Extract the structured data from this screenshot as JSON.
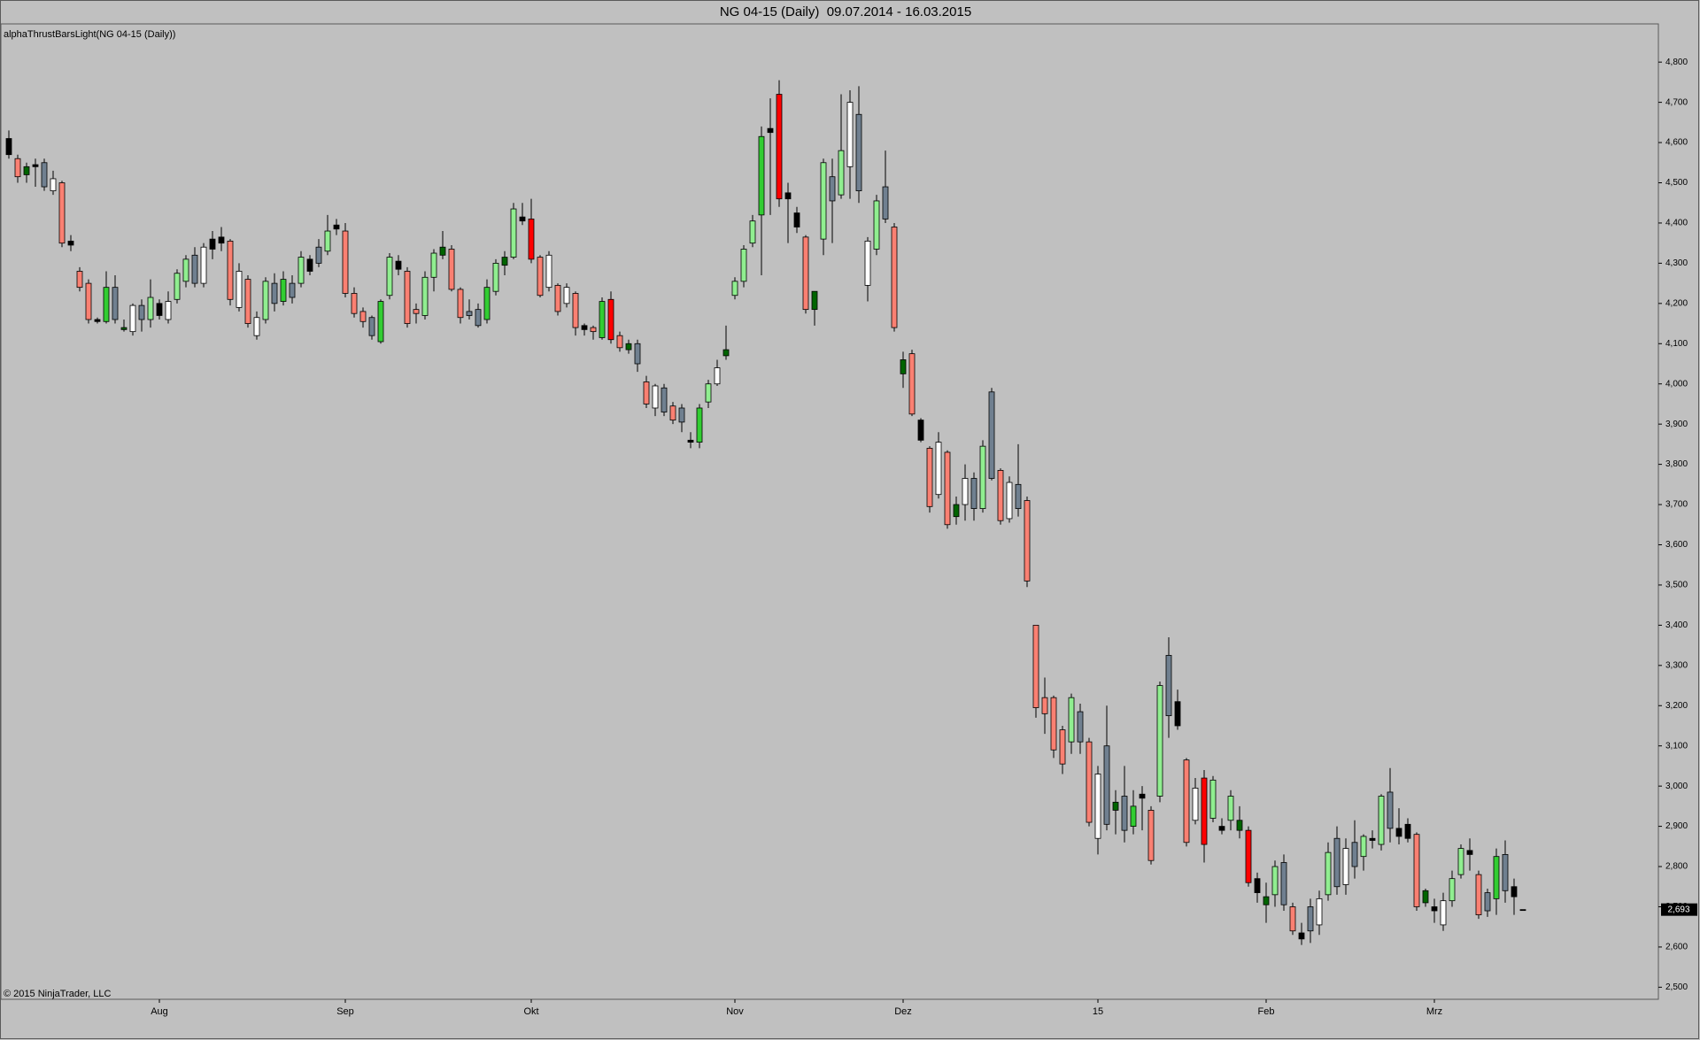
{
  "chart_data": {
    "type": "candlestick",
    "title": "NG 04-15 (Daily)  09.07.2014 - 16.03.2015",
    "indicator_label": "alphaThrustBarsLight(NG 04-15 (Daily))",
    "copyright": "© 2015 NinjaTrader, LLC",
    "categories": [
      null,
      null,
      null,
      null,
      null,
      null,
      null,
      null,
      null,
      null,
      null,
      null,
      null,
      null,
      null,
      null,
      null,
      "Aug",
      null,
      null,
      null,
      null,
      null,
      null,
      null,
      null,
      null,
      null,
      null,
      null,
      null,
      null,
      null,
      null,
      null,
      null,
      null,
      null,
      "Sep",
      null,
      null,
      null,
      null,
      null,
      null,
      null,
      null,
      null,
      null,
      null,
      null,
      null,
      null,
      null,
      null,
      null,
      null,
      null,
      null,
      "Okt",
      null,
      null,
      null,
      null,
      null,
      null,
      null,
      null,
      null,
      null,
      null,
      null,
      null,
      null,
      null,
      null,
      null,
      null,
      null,
      null,
      null,
      null,
      "Nov",
      null,
      null,
      null,
      null,
      null,
      null,
      null,
      null,
      null,
      null,
      null,
      null,
      null,
      null,
      null,
      null,
      null,
      null,
      "Dez",
      null,
      null,
      null,
      null,
      null,
      null,
      null,
      null,
      null,
      null,
      null,
      null,
      null,
      null,
      null,
      null,
      null,
      null,
      null,
      null,
      null,
      "15",
      null,
      null,
      null,
      null,
      null,
      null,
      null,
      null,
      null,
      null,
      null,
      null,
      null,
      null,
      null,
      null,
      null,
      null,
      "Feb",
      null,
      null,
      null,
      null,
      null,
      null,
      null,
      null,
      null,
      null,
      null,
      null,
      null,
      null,
      null,
      null,
      null,
      null,
      "Mrz",
      null,
      null,
      null,
      null,
      null,
      null,
      null,
      null,
      null,
      null
    ],
    "open": [
      4610,
      4560,
      4540,
      4545,
      4550,
      4480,
      4500,
      4355,
      4280,
      4250,
      4160,
      4155,
      4240,
      4140,
      4130,
      4195,
      4160,
      4200,
      4160,
      4210,
      4255,
      4320,
      4250,
      4360,
      4365,
      4355,
      4190,
      4260,
      4120,
      4160,
      4250,
      4205,
      4250,
      4250,
      4310,
      4340,
      4330,
      4395,
      4380,
      4225,
      4180,
      4165,
      4105,
      4220,
      4305,
      4280,
      4185,
      4170,
      4265,
      4340,
      4335,
      4235,
      4180,
      4185,
      4160,
      4230,
      4315,
      4315,
      4415,
      4410,
      4315,
      4240,
      4245,
      4200,
      4225,
      4145,
      4140,
      4115,
      4210,
      4120,
      4100,
      4100,
      4005,
      3940,
      3990,
      3945,
      3940,
      3860,
      3855,
      3955,
      4000,
      4085,
      4220,
      4255,
      4350,
      4420,
      4635,
      4720,
      4475,
      4425,
      4365,
      4230,
      4360,
      4515,
      4470,
      4540,
      4670,
      4245,
      4335,
      4490,
      4390,
      4060,
      4075,
      3910,
      3840,
      3725,
      3830,
      3700,
      3700,
      3765,
      3690,
      3980,
      3785,
      3665,
      3750,
      3710,
      3400,
      3220,
      3220,
      3140,
      3110,
      3185,
      3110,
      2870,
      3100,
      2960,
      2975,
      2900,
      2980,
      2940,
      2975,
      3325,
      3210,
      3065,
      2915,
      3020,
      2920,
      2900,
      2915,
      2915,
      2890,
      2770,
      2725,
      2730,
      2810,
      2700,
      2635,
      2700,
      2655,
      2730,
      2870,
      2755,
      2860,
      2825,
      2870,
      2855,
      2985,
      2895,
      2905,
      2880,
      2740,
      2700,
      2655,
      2715,
      2780,
      2840,
      2780,
      2735,
      2720,
      2830,
      2750,
      2693
    ],
    "high": [
      4630,
      4570,
      4550,
      4560,
      4560,
      4530,
      4505,
      4370,
      4290,
      4260,
      4165,
      4280,
      4270,
      4160,
      4200,
      4210,
      4260,
      4210,
      4230,
      4285,
      4320,
      4340,
      4350,
      4380,
      4390,
      4360,
      4300,
      4270,
      4180,
      4265,
      4275,
      4280,
      4270,
      4330,
      4320,
      4360,
      4420,
      4410,
      4400,
      4240,
      4190,
      4170,
      4210,
      4325,
      4320,
      4290,
      4200,
      4280,
      4335,
      4380,
      4345,
      4240,
      4210,
      4200,
      4260,
      4310,
      4330,
      4450,
      4450,
      4460,
      4320,
      4330,
      4250,
      4250,
      4230,
      4150,
      4145,
      4215,
      4230,
      4130,
      4110,
      4110,
      4020,
      4000,
      4000,
      3955,
      3950,
      3880,
      3950,
      4010,
      4060,
      4145,
      4265,
      4345,
      4420,
      4640,
      4710,
      4755,
      4500,
      4440,
      4370,
      4230,
      4560,
      4560,
      4720,
      4730,
      4740,
      4365,
      4470,
      4580,
      4400,
      4080,
      4085,
      3915,
      3845,
      3880,
      3835,
      3720,
      3800,
      3780,
      3860,
      3990,
      3790,
      3770,
      3850,
      3720,
      3400,
      3270,
      3225,
      3150,
      3230,
      3205,
      3120,
      3050,
      3200,
      2990,
      3050,
      2990,
      3000,
      2950,
      3260,
      3370,
      3240,
      3070,
      3020,
      3040,
      3025,
      2920,
      2990,
      2950,
      2900,
      2785,
      2760,
      2815,
      2830,
      2710,
      2660,
      2720,
      2740,
      2860,
      2900,
      2870,
      2915,
      2880,
      2890,
      2980,
      3045,
      2945,
      2920,
      2885,
      2745,
      2720,
      2735,
      2790,
      2855,
      2870,
      2790,
      2745,
      2845,
      2865,
      2770,
      2693
    ],
    "low": [
      4560,
      4500,
      4500,
      4490,
      4480,
      4470,
      4340,
      4330,
      4230,
      4150,
      4150,
      4150,
      4150,
      4130,
      4120,
      4130,
      4140,
      4160,
      4150,
      4200,
      4240,
      4240,
      4240,
      4310,
      4330,
      4195,
      4180,
      4140,
      4110,
      4150,
      4180,
      4195,
      4200,
      4240,
      4270,
      4290,
      4320,
      4370,
      4215,
      4165,
      4140,
      4110,
      4100,
      4210,
      4270,
      4140,
      4150,
      4160,
      4230,
      4310,
      4230,
      4150,
      4160,
      4140,
      4150,
      4220,
      4270,
      4310,
      4395,
      4300,
      4215,
      4230,
      4170,
      4190,
      4120,
      4120,
      4110,
      4110,
      4100,
      4080,
      4075,
      4030,
      3940,
      3920,
      3920,
      3900,
      3880,
      3840,
      3840,
      3940,
      3995,
      4060,
      4210,
      4240,
      4340,
      4270,
      4420,
      4440,
      4350,
      4375,
      4175,
      4145,
      4320,
      4350,
      4460,
      4460,
      4450,
      4205,
      4320,
      4400,
      4130,
      3990,
      3920,
      3855,
      3680,
      3715,
      3640,
      3650,
      3660,
      3660,
      3680,
      3760,
      3650,
      3655,
      3670,
      3495,
      3170,
      3130,
      3070,
      3030,
      3080,
      3080,
      2900,
      2830,
      2890,
      2880,
      2860,
      2880,
      2890,
      2805,
      2960,
      3120,
      3140,
      2850,
      2905,
      2810,
      2910,
      2880,
      2890,
      2870,
      2750,
      2710,
      2660,
      2700,
      2690,
      2630,
      2605,
      2610,
      2630,
      2715,
      2730,
      2730,
      2770,
      2790,
      2845,
      2840,
      2860,
      2855,
      2860,
      2690,
      2700,
      2660,
      2640,
      2700,
      2770,
      2790,
      2670,
      2675,
      2680,
      2710,
      2680,
      2693
    ],
    "close": [
      4570,
      4515,
      4520,
      4540,
      4490,
      4510,
      4350,
      4345,
      4240,
      4160,
      4155,
      4240,
      4160,
      4135,
      4195,
      4160,
      4215,
      4170,
      4205,
      4275,
      4310,
      4250,
      4340,
      4335,
      4350,
      4210,
      4280,
      4150,
      4165,
      4255,
      4200,
      4260,
      4215,
      4315,
      4280,
      4300,
      4380,
      4385,
      4225,
      4175,
      4155,
      4120,
      4205,
      4315,
      4285,
      4150,
      4175,
      4265,
      4325,
      4320,
      4235,
      4165,
      4170,
      4145,
      4240,
      4300,
      4295,
      4435,
      4405,
      4310,
      4220,
      4320,
      4180,
      4240,
      4140,
      4135,
      4130,
      4205,
      4110,
      4090,
      4085,
      4050,
      3950,
      3995,
      3930,
      3910,
      3905,
      3855,
      3940,
      4000,
      4040,
      4070,
      4255,
      4335,
      4405,
      4615,
      4625,
      4460,
      4460,
      4390,
      4185,
      4185,
      4550,
      4455,
      4580,
      4700,
      4480,
      4355,
      4455,
      4410,
      4140,
      4025,
      3925,
      3860,
      3695,
      3855,
      3650,
      3670,
      3765,
      3690,
      3845,
      3765,
      3660,
      3755,
      3690,
      3510,
      3195,
      3180,
      3090,
      3055,
      3220,
      3110,
      2910,
      3030,
      2905,
      2940,
      2890,
      2950,
      2970,
      2815,
      3250,
      3175,
      3150,
      2860,
      2995,
      2855,
      3015,
      2890,
      2975,
      2890,
      2760,
      2735,
      2705,
      2800,
      2705,
      2640,
      2620,
      2640,
      2720,
      2835,
      2750,
      2845,
      2800,
      2875,
      2865,
      2975,
      2895,
      2875,
      2870,
      2700,
      2710,
      2690,
      2715,
      2770,
      2845,
      2830,
      2680,
      2690,
      2825,
      2740,
      2725,
      2693
    ],
    "colors": [
      "#000000",
      "#FA8072",
      "#006400",
      "#000000",
      "#708090",
      "#FFFFFF",
      "#FA8072",
      "#000000",
      "#FA8072",
      "#FA8072",
      "#000000",
      "#32CD32",
      "#708090",
      "#006400",
      "#FFFFFF",
      "#708090",
      "#90EE90",
      "#000000",
      "#FFFFFF",
      "#90EE90",
      "#90EE90",
      "#708090",
      "#FFFFFF",
      "#000000",
      "#000000",
      "#FA8072",
      "#FFFFFF",
      "#FA8072",
      "#FFFFFF",
      "#90EE90",
      "#708090",
      "#32CD32",
      "#708090",
      "#90EE90",
      "#000000",
      "#708090",
      "#90EE90",
      "#000000",
      "#FA8072",
      "#FA8072",
      "#FA8072",
      "#708090",
      "#32CD32",
      "#90EE90",
      "#000000",
      "#FA8072",
      "#FA8072",
      "#90EE90",
      "#90EE90",
      "#006400",
      "#FA8072",
      "#FA8072",
      "#708090",
      "#708090",
      "#32CD32",
      "#90EE90",
      "#006400",
      "#90EE90",
      "#000000",
      "#FF0000",
      "#FA8072",
      "#FFFFFF",
      "#FA8072",
      "#FFFFFF",
      "#FA8072",
      "#000000",
      "#FA8072",
      "#32CD32",
      "#FF0000",
      "#FA8072",
      "#006400",
      "#708090",
      "#FA8072",
      "#FFFFFF",
      "#708090",
      "#FA8072",
      "#708090",
      "#000000",
      "#32CD32",
      "#90EE90",
      "#FFFFFF",
      "#006400",
      "#90EE90",
      "#90EE90",
      "#90EE90",
      "#32CD32",
      "#000000",
      "#FF0000",
      "#000000",
      "#000000",
      "#FA8072",
      "#006400",
      "#90EE90",
      "#708090",
      "#90EE90",
      "#FFFFFF",
      "#708090",
      "#FFFFFF",
      "#90EE90",
      "#708090",
      "#FA8072",
      "#006400",
      "#FA8072",
      "#000000",
      "#FA8072",
      "#FFFFFF",
      "#FA8072",
      "#006400",
      "#FFFFFF",
      "#708090",
      "#90EE90",
      "#708090",
      "#FA8072",
      "#FFFFFF",
      "#708090",
      "#FA8072",
      "#FA8072",
      "#FA8072",
      "#FA8072",
      "#FA8072",
      "#90EE90",
      "#708090",
      "#FA8072",
      "#FFFFFF",
      "#708090",
      "#006400",
      "#708090",
      "#32CD32",
      "#000000",
      "#FA8072",
      "#90EE90",
      "#708090",
      "#000000",
      "#FA8072",
      "#FFFFFF",
      "#FF0000",
      "#90EE90",
      "#000000",
      "#90EE90",
      "#006400",
      "#FF0000",
      "#000000",
      "#006400",
      "#90EE90",
      "#708090",
      "#FA8072",
      "#000000",
      "#708090",
      "#FFFFFF",
      "#90EE90",
      "#708090",
      "#FFFFFF",
      "#708090",
      "#90EE90",
      "#000000",
      "#90EE90",
      "#708090",
      "#000000",
      "#000000",
      "#FA8072",
      "#006400",
      "#000000",
      "#FFFFFF",
      "#90EE90",
      "#90EE90",
      "#000000",
      "#FA8072",
      "#708090",
      "#32CD32",
      "#708090",
      "#000000",
      "#000000"
    ],
    "ylim": [
      2470,
      4895
    ],
    "yticks": [
      {
        "value": 2500,
        "label": "2,500"
      },
      {
        "value": 2600,
        "label": "2,600"
      },
      {
        "value": 2700,
        "label": "2,700"
      },
      {
        "value": 2800,
        "label": "2,800"
      },
      {
        "value": 2900,
        "label": "2,900"
      },
      {
        "value": 3000,
        "label": "3,000"
      },
      {
        "value": 3100,
        "label": "3,100"
      },
      {
        "value": 3200,
        "label": "3,200"
      },
      {
        "value": 3300,
        "label": "3,300"
      },
      {
        "value": 3400,
        "label": "3,400"
      },
      {
        "value": 3500,
        "label": "3,500"
      },
      {
        "value": 3600,
        "label": "3,600"
      },
      {
        "value": 3700,
        "label": "3,700"
      },
      {
        "value": 3800,
        "label": "3,800"
      },
      {
        "value": 3900,
        "label": "3,900"
      },
      {
        "value": 4000,
        "label": "4,000"
      },
      {
        "value": 4100,
        "label": "4,100"
      },
      {
        "value": 4200,
        "label": "4,200"
      },
      {
        "value": 4300,
        "label": "4,300"
      },
      {
        "value": 4400,
        "label": "4,400"
      },
      {
        "value": 4500,
        "label": "4,500"
      },
      {
        "value": 4600,
        "label": "4,600"
      },
      {
        "value": 4700,
        "label": "4,700"
      },
      {
        "value": 4800,
        "label": "4,800"
      }
    ],
    "last_price": {
      "value": 2693,
      "label": "2,693"
    }
  }
}
